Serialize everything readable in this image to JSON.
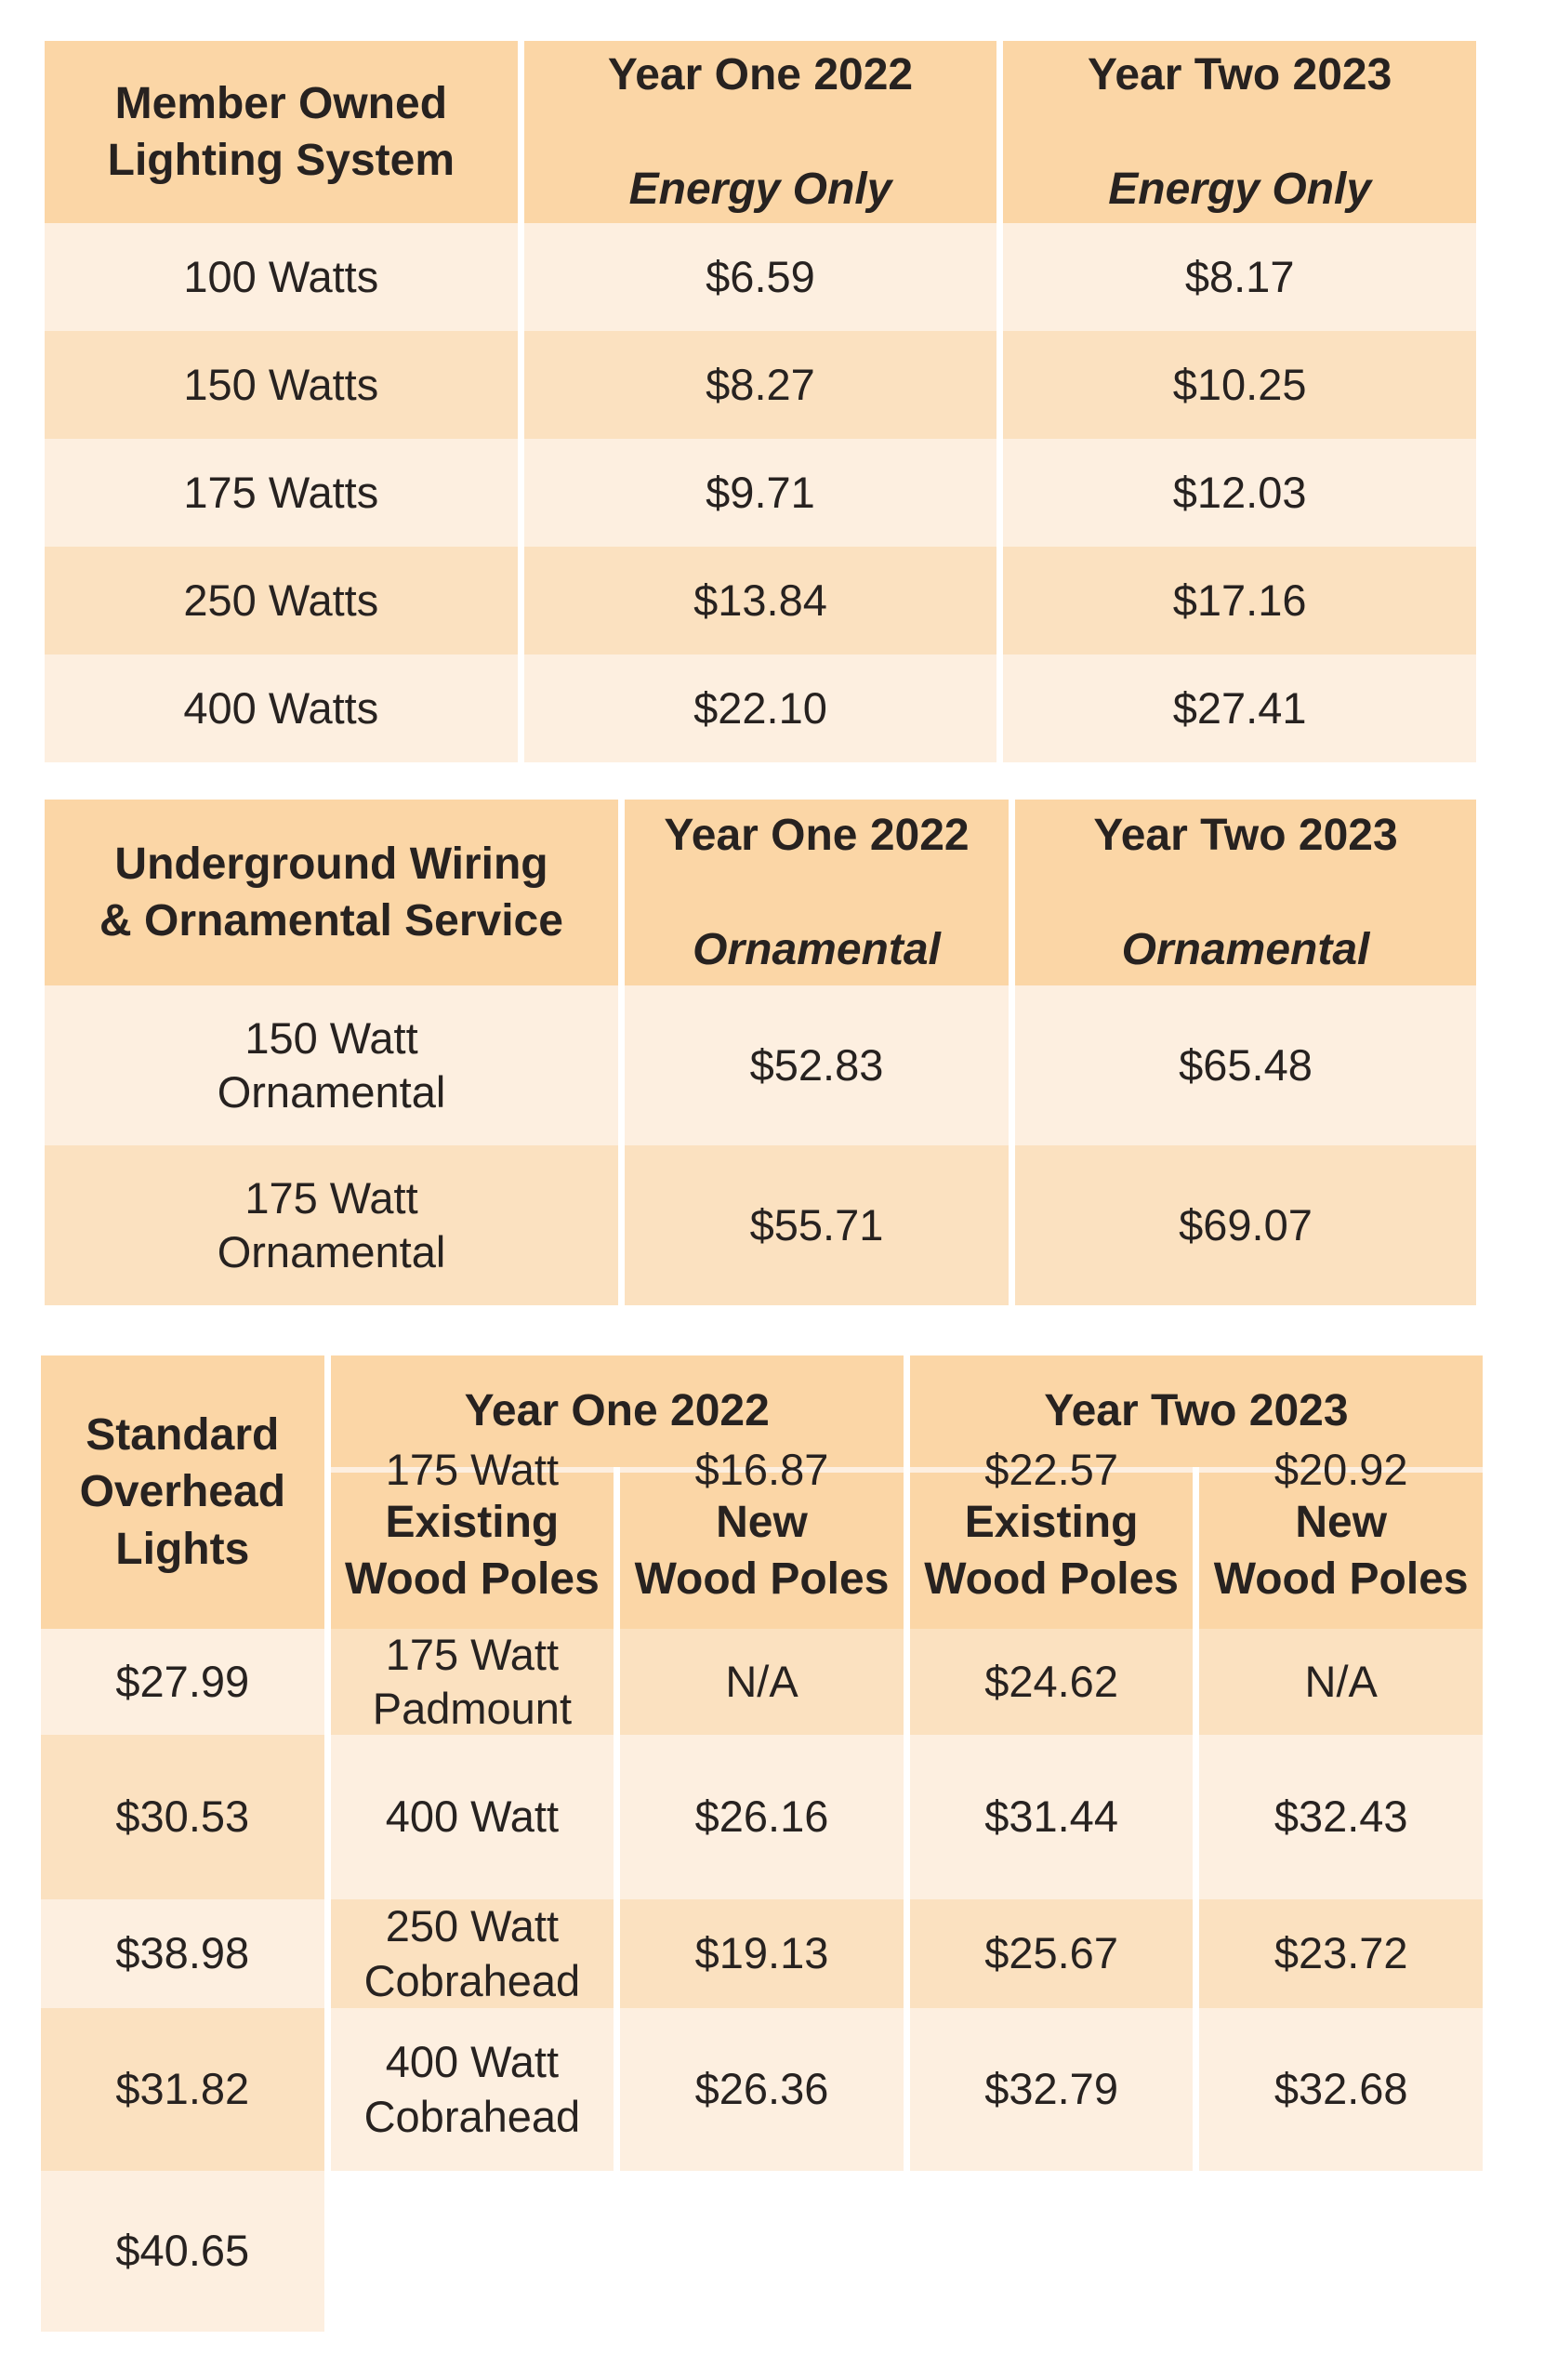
{
  "colors": {
    "header_bg": "#FBD6A6",
    "row_light": "#FDEFE0",
    "row_dark": "#FBE1C0",
    "text": "#272220",
    "page_bg": "#FFFFFF"
  },
  "member_owned": {
    "header": {
      "col1": "Member Owned\nLighting System",
      "col2": {
        "line1": "Year One 2022",
        "line2": "Energy Only"
      },
      "col3": {
        "line1": "Year Two 2023",
        "line2": "Energy Only"
      }
    },
    "rows": [
      {
        "label": "100 Watts",
        "y1": "$6.59",
        "y2": "$8.17"
      },
      {
        "label": "150 Watts",
        "y1": "$8.27",
        "y2": "$10.25"
      },
      {
        "label": "175 Watts",
        "y1": "$9.71",
        "y2": "$12.03"
      },
      {
        "label": "250 Watts",
        "y1": "$13.84",
        "y2": "$17.16"
      },
      {
        "label": "400 Watts",
        "y1": "$22.10",
        "y2": "$27.41"
      }
    ]
  },
  "underground": {
    "header": {
      "col1": "Underground Wiring\n& Ornamental Service",
      "col2": {
        "line1": "Year One 2022",
        "line2": "Ornamental"
      },
      "col3": {
        "line1": "Year Two 2023",
        "line2": "Ornamental"
      }
    },
    "rows": [
      {
        "label": "150 Watt\nOrnamental",
        "y1": "$52.83",
        "y2": "$65.48"
      },
      {
        "label": "175 Watt\nOrnamental",
        "y1": "$55.71",
        "y2": "$69.07"
      }
    ]
  },
  "overhead": {
    "header": {
      "col1": "Standard\nOverhead\nLights",
      "year1": "Year One 2022",
      "year2": "Year Two 2023",
      "sub1": "Existing\nWood Poles",
      "sub2": "New\nWood Poles",
      "sub3": "Existing\nWood Poles",
      "sub4": "New\nWood Poles"
    },
    "rows": [
      {
        "label": "175 Watt",
        "y1e": "$16.87",
        "y1n": "$22.57",
        "y2e": "$20.92",
        "y2n": "$27.99"
      },
      {
        "label": "175 Watt\nPadmount",
        "y1e": "N/A",
        "y1n": "$24.62",
        "y2e": "N/A",
        "y2n": "$30.53"
      },
      {
        "label": "400 Watt",
        "y1e": "$26.16",
        "y1n": "$31.44",
        "y2e": "$32.43",
        "y2n": "$38.98"
      },
      {
        "label": "250 Watt\nCobrahead",
        "y1e": "$19.13",
        "y1n": "$25.67",
        "y2e": "$23.72",
        "y2n": "$31.82"
      },
      {
        "label": "400 Watt\nCobrahead",
        "y1e": "$26.36",
        "y1n": "$32.79",
        "y2e": "$32.68",
        "y2n": "$40.65"
      }
    ]
  }
}
